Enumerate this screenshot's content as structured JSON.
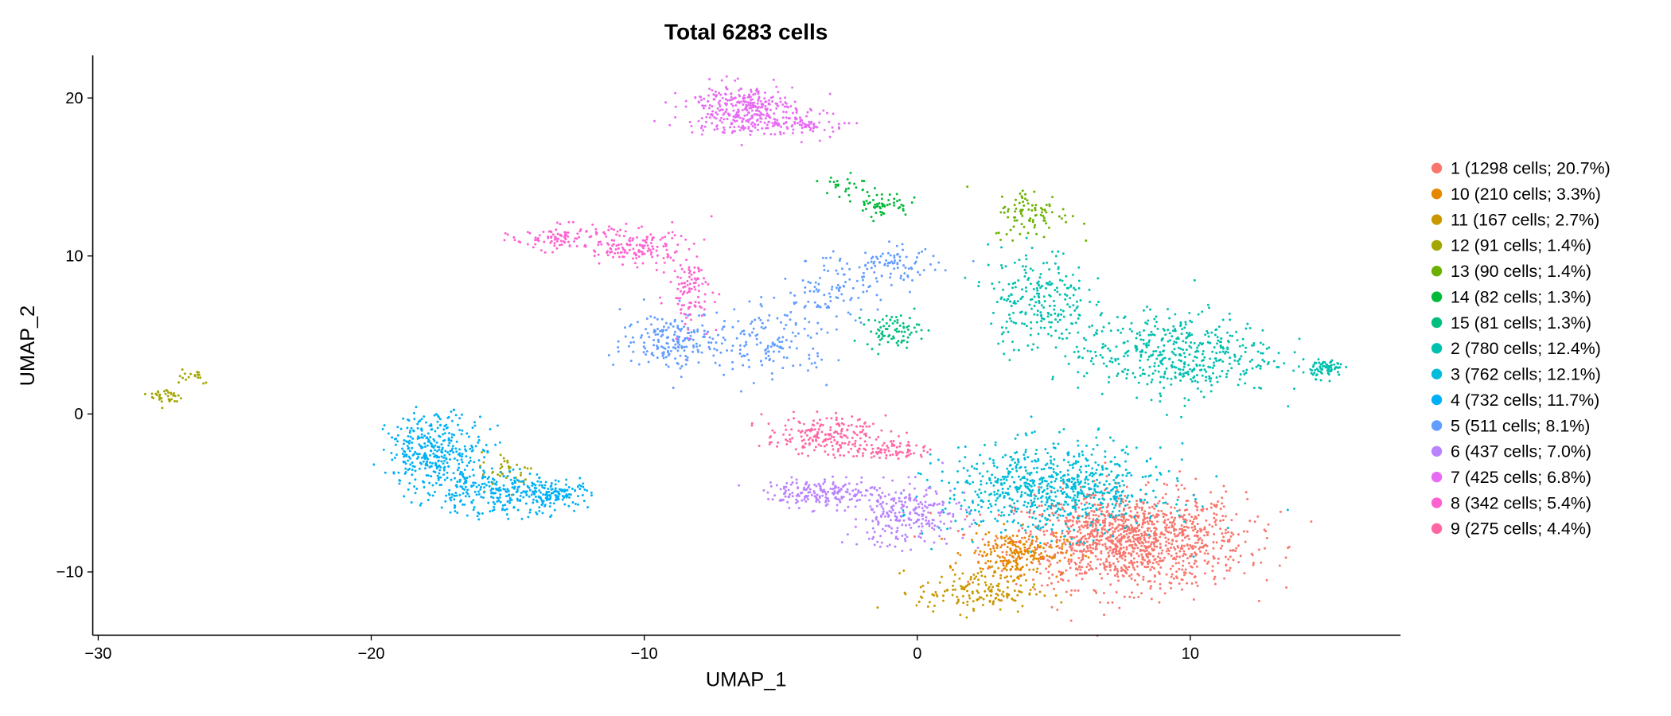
{
  "chart_data": {
    "type": "scatter",
    "title": "Total 6283 cells",
    "xlabel": "UMAP_1",
    "ylabel": "UMAP_2",
    "xlim": [
      -30.2,
      17.7
    ],
    "ylim": [
      -14.0,
      22.7
    ],
    "xticks": [
      -30,
      -20,
      -10,
      0,
      10
    ],
    "yticks": [
      -10,
      0,
      10,
      20
    ],
    "grid": false,
    "legend_position": "right",
    "series": [
      {
        "name": "1 (1298 cells; 20.7%)",
        "color": "#F8766D",
        "n": 1298,
        "regions": [
          {
            "center": [
              7.8,
              -8.0
            ],
            "sd": [
              2.1,
              1.5
            ],
            "w": 1
          }
        ]
      },
      {
        "name": "10 (210 cells; 3.3%)",
        "color": "#E58700",
        "n": 210,
        "regions": [
          {
            "center": [
              3.6,
              -8.8
            ],
            "sd": [
              0.9,
              0.7
            ],
            "w": 1
          }
        ]
      },
      {
        "name": "11 (167 cells; 2.7%)",
        "color": "#C99800",
        "n": 167,
        "regions": [
          {
            "center": [
              2.2,
              -11.2
            ],
            "sd": [
              1.1,
              0.7
            ],
            "w": 1
          }
        ]
      },
      {
        "name": "12 (91 cells; 1.4%)",
        "color": "#A3A500",
        "n": 91,
        "regions": [
          {
            "center": [
              -27.5,
              1.1
            ],
            "sd": [
              0.3,
              0.3
            ],
            "w": 0.4
          },
          {
            "center": [
              -26.6,
              2.5
            ],
            "sd": [
              0.4,
              0.3
            ],
            "w": 0.2
          },
          {
            "center": [
              -15.0,
              -3.6
            ],
            "sd": [
              0.5,
              0.6
            ],
            "w": 0.4
          }
        ]
      },
      {
        "name": "13 (90 cells; 1.4%)",
        "color": "#6BB100",
        "n": 90,
        "regions": [
          {
            "center": [
              4.2,
              12.7
            ],
            "sd": [
              0.7,
              0.8
            ],
            "w": 1
          }
        ]
      },
      {
        "name": "14 (82 cells; 1.3%)",
        "color": "#00BA38",
        "n": 82,
        "regions": [
          {
            "center": [
              -1.3,
              13.3
            ],
            "sd": [
              0.5,
              0.4
            ],
            "w": 0.7
          },
          {
            "center": [
              -2.8,
              14.5
            ],
            "sd": [
              0.6,
              0.5
            ],
            "w": 0.3
          }
        ]
      },
      {
        "name": "15 (81 cells; 1.3%)",
        "color": "#00BF7D",
        "n": 81,
        "regions": [
          {
            "center": [
              -0.9,
              5.3
            ],
            "sd": [
              0.5,
              0.5
            ],
            "w": 1
          }
        ]
      },
      {
        "name": "2 (780 cells; 12.4%)",
        "color": "#00C0AF",
        "n": 780,
        "regions": [
          {
            "center": [
              9.5,
              3.8
            ],
            "sd": [
              1.8,
              1.3
            ],
            "w": 0.6
          },
          {
            "center": [
              4.4,
              7.2
            ],
            "sd": [
              0.9,
              1.6
            ],
            "w": 0.3
          },
          {
            "center": [
              15.0,
              2.9
            ],
            "sd": [
              0.3,
              0.3
            ],
            "w": 0.1
          }
        ]
      },
      {
        "name": "3 (762 cells; 12.1%)",
        "color": "#00BCD8",
        "n": 762,
        "regions": [
          {
            "center": [
              5.0,
              -4.8
            ],
            "sd": [
              2.0,
              1.4
            ],
            "w": 1
          }
        ]
      },
      {
        "name": "4 (732 cells; 11.7%)",
        "color": "#00B0F6",
        "n": 732,
        "regions": [
          {
            "center": [
              -17.6,
              -2.4
            ],
            "sd": [
              0.9,
              1.2
            ],
            "w": 0.5
          },
          {
            "center": [
              -15.5,
              -5.0
            ],
            "sd": [
              1.3,
              0.7
            ],
            "w": 0.35
          },
          {
            "center": [
              -13.2,
              -5.1
            ],
            "sd": [
              0.6,
              0.4
            ],
            "w": 0.15
          }
        ]
      },
      {
        "name": "5 (511 cells; 8.1%)",
        "color": "#619CFF",
        "n": 511,
        "regions": [
          {
            "center": [
              -9.0,
              4.7
            ],
            "sd": [
              0.9,
              0.9
            ],
            "w": 0.35
          },
          {
            "center": [
              -5.5,
              4.5
            ],
            "sd": [
              1.2,
              1.1
            ],
            "w": 0.3
          },
          {
            "center": [
              -3.0,
              7.8
            ],
            "sd": [
              1.0,
              1.0
            ],
            "w": 0.2
          },
          {
            "center": [
              -0.8,
              9.5
            ],
            "sd": [
              0.8,
              0.5
            ],
            "w": 0.15
          }
        ]
      },
      {
        "name": "6 (437 cells; 7.0%)",
        "color": "#B983FF",
        "n": 437,
        "regions": [
          {
            "center": [
              -0.4,
              -6.4
            ],
            "sd": [
              1.1,
              1.0
            ],
            "w": 0.6
          },
          {
            "center": [
              -3.5,
              -5.0
            ],
            "sd": [
              1.0,
              0.4
            ],
            "w": 0.4
          }
        ]
      },
      {
        "name": "7 (425 cells; 6.8%)",
        "color": "#E76BF3",
        "n": 425,
        "regions": [
          {
            "center": [
              -6.5,
              19.3
            ],
            "sd": [
              1.0,
              0.8
            ],
            "w": 0.8
          },
          {
            "center": [
              -4.0,
              18.3
            ],
            "sd": [
              0.7,
              0.4
            ],
            "w": 0.2
          }
        ]
      },
      {
        "name": "8 (342 cells; 5.4%)",
        "color": "#FD61D1",
        "n": 342,
        "regions": [
          {
            "center": [
              -13.0,
              11.2
            ],
            "sd": [
              0.9,
              0.4
            ],
            "w": 0.3
          },
          {
            "center": [
              -10.3,
              10.5
            ],
            "sd": [
              0.9,
              0.6
            ],
            "w": 0.4
          },
          {
            "center": [
              -8.3,
              7.8
            ],
            "sd": [
              0.4,
              1.1
            ],
            "w": 0.3
          }
        ]
      },
      {
        "name": "9 (275 cells; 4.4%)",
        "color": "#FF67A4",
        "n": 275,
        "regions": [
          {
            "center": [
              -3.4,
              -1.4
            ],
            "sd": [
              1.1,
              0.6
            ],
            "w": 0.75
          },
          {
            "center": [
              -0.8,
              -2.3
            ],
            "sd": [
              0.6,
              0.3
            ],
            "w": 0.25
          }
        ]
      }
    ]
  }
}
